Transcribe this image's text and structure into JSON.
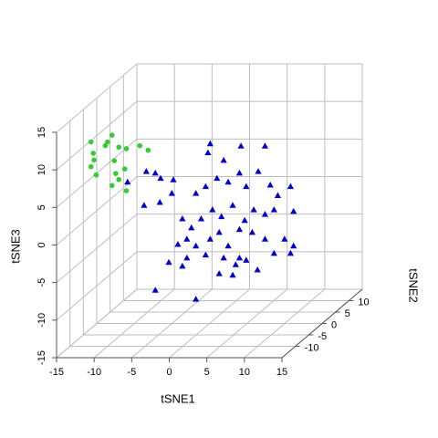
{
  "chart_data": {
    "type": "scatter3d",
    "x_label": "tSNE1",
    "y_label": "tSNE2",
    "z_label": "tSNE3",
    "xlim": [
      -15,
      15
    ],
    "ylim": [
      -15,
      15
    ],
    "zlim": [
      -15,
      15
    ],
    "xticks": [
      -15,
      -10,
      -5,
      0,
      5,
      10,
      15
    ],
    "yticks": [
      -10,
      -5,
      0,
      5,
      10
    ],
    "zticks": [
      -15,
      -10,
      -5,
      0,
      5,
      10,
      15
    ],
    "grid": true,
    "series": [
      {
        "color": "#33cc33",
        "marker": "circle",
        "x": [
          -12.2,
          -10.3,
          -9.4,
          -8.5,
          -7.5,
          -5.7,
          -4.6,
          -11.8,
          -12.2,
          -9.1,
          -7.7,
          -11.5,
          -8.9,
          -8.5,
          -9.4,
          -7.5,
          -11.9,
          -10.0
        ],
        "y": [
          -10,
          -10,
          -10,
          -10,
          -10,
          -10,
          -10,
          -10,
          -10,
          -10,
          -10,
          -10,
          -10,
          -10,
          -10,
          -10,
          -10,
          -10
        ],
        "z": [
          12.2,
          11.7,
          13.1,
          11.5,
          11.3,
          11.7,
          11.1,
          9.8,
          8.9,
          9.7,
          8.6,
          7.8,
          8.0,
          7.2,
          6.4,
          5.7,
          10.7,
          12.2
        ]
      },
      {
        "color": "#0000cd",
        "marker": "triangle",
        "x": [
          0.1,
          4.2,
          7.4,
          -8.4,
          -7.2,
          -6.5,
          -4.8,
          -0.2,
          1.9,
          4.0,
          6.5,
          -10.9,
          -8.7,
          -6.6,
          -5.0,
          -1.8,
          -0.5,
          1.0,
          2.5,
          4.9,
          8.1,
          9.1,
          10.8,
          11.2,
          -3.6,
          -2.4,
          -1.1,
          0.4,
          1.6,
          3.1,
          4.7,
          5.9,
          7.4,
          8.6,
          -4.2,
          -3.0,
          -1.8,
          0.1,
          1.3,
          2.5,
          4.0,
          5.7,
          7.4,
          10.0,
          11.2,
          -5.4,
          -3.6,
          -0.5,
          1.9,
          3.5,
          4.9,
          6.4,
          8.6,
          10.8,
          -7.2,
          -1.8,
          1.3,
          3.1,
          4.0,
          -3.0
        ],
        "y": [
          0,
          0,
          0,
          0,
          0,
          0,
          0,
          0,
          0,
          0,
          0,
          0,
          0,
          0,
          0,
          0,
          0,
          0,
          0,
          0,
          0,
          0,
          0,
          0,
          0,
          0,
          0,
          0,
          0,
          0,
          0,
          0,
          0,
          0,
          0,
          0,
          0,
          0,
          0,
          0,
          0,
          0,
          0,
          0,
          0,
          0,
          0,
          0,
          0,
          0,
          0,
          0,
          0,
          0,
          0,
          0,
          0,
          0,
          0,
          0
        ],
        "z": [
          8.9,
          8.6,
          8.6,
          5.2,
          5.0,
          4.3,
          4.1,
          7.7,
          6.7,
          5.0,
          5.2,
          3.8,
          0.7,
          1.1,
          2.3,
          2.3,
          3.2,
          4.3,
          3.8,
          3.2,
          3.4,
          2.0,
          3.2,
          -0.1,
          -1.1,
          -2.3,
          -1.1,
          0.1,
          -0.8,
          0.7,
          -1.3,
          0.1,
          -0.5,
          0.1,
          -4.5,
          -3.8,
          -4.7,
          -3.8,
          -2.9,
          -4.7,
          -2.5,
          -2.9,
          -3.8,
          -3.8,
          -4.7,
          -6.9,
          -7.4,
          -5.9,
          -6.3,
          -7.2,
          -6.6,
          -7.9,
          -5.7,
          -5.7,
          -10.6,
          -11.8,
          -8.4,
          -8.6,
          -6.3,
          -6.3
        ]
      }
    ]
  }
}
